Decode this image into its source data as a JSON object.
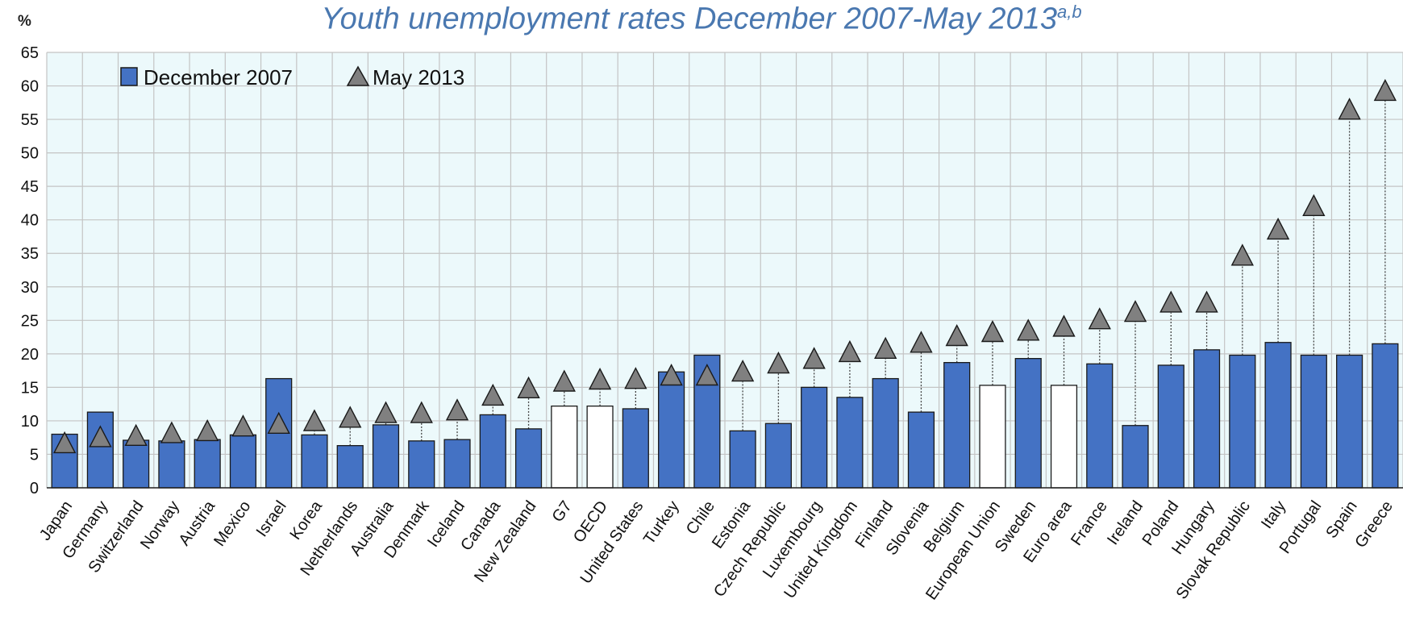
{
  "chart_data": {
    "type": "bar",
    "title": "Youth unemployment rates December 2007-May 2013",
    "title_superscript": "a,b",
    "ylabel": "%",
    "ylim": [
      0,
      65
    ],
    "yticks": [
      0,
      5,
      10,
      15,
      20,
      25,
      30,
      35,
      40,
      45,
      50,
      55,
      60,
      65
    ],
    "grid": true,
    "legend_position": "top-left",
    "categories": [
      "Japan",
      "Germany",
      "Switzerland",
      "Norway",
      "Austria",
      "Mexico",
      "Israel",
      "Korea",
      "Netherlands",
      "Australia",
      "Denmark",
      "Iceland",
      "Canada",
      "New Zealand",
      "G7",
      "OECD",
      "United States",
      "Turkey",
      "Chile",
      "Estonia",
      "Czech Republic",
      "Luxembourg",
      "United Kingdom",
      "Finland",
      "Slovenia",
      "Belgium",
      "European Union",
      "Sweden",
      "Euro area",
      "France",
      "Ireland",
      "Poland",
      "Hungary",
      "Slovak Republic",
      "Italy",
      "Portugal",
      "Spain",
      "Greece"
    ],
    "aggregates": [
      "G7",
      "OECD",
      "European Union",
      "Euro area"
    ],
    "series": [
      {
        "name": "December 2007",
        "marker": "bar",
        "color": "#4472c4",
        "aggregate_color": "#ffffff",
        "values": [
          8.0,
          11.3,
          7.1,
          7.0,
          7.2,
          7.9,
          16.3,
          7.9,
          6.3,
          9.4,
          7.0,
          7.2,
          10.9,
          8.8,
          12.2,
          12.2,
          11.8,
          17.3,
          19.8,
          8.5,
          9.6,
          15.0,
          13.5,
          16.3,
          11.3,
          18.7,
          15.3,
          19.3,
          15.3,
          18.5,
          9.3,
          18.3,
          20.6,
          19.8,
          21.7,
          19.8,
          19.8,
          21.5
        ]
      },
      {
        "name": "May 2013",
        "marker": "triangle",
        "color": "#808080",
        "values": [
          6.6,
          7.5,
          7.7,
          8.1,
          8.4,
          9.1,
          9.5,
          9.9,
          10.4,
          11.1,
          11.1,
          11.5,
          13.7,
          14.8,
          15.8,
          16.1,
          16.2,
          16.7,
          16.7,
          17.3,
          18.5,
          19.2,
          20.2,
          20.7,
          21.6,
          22.6,
          23.2,
          23.4,
          24.0,
          25.1,
          26.2,
          27.6,
          27.6,
          34.6,
          38.5,
          42.0,
          56.4,
          59.2
        ]
      }
    ]
  }
}
